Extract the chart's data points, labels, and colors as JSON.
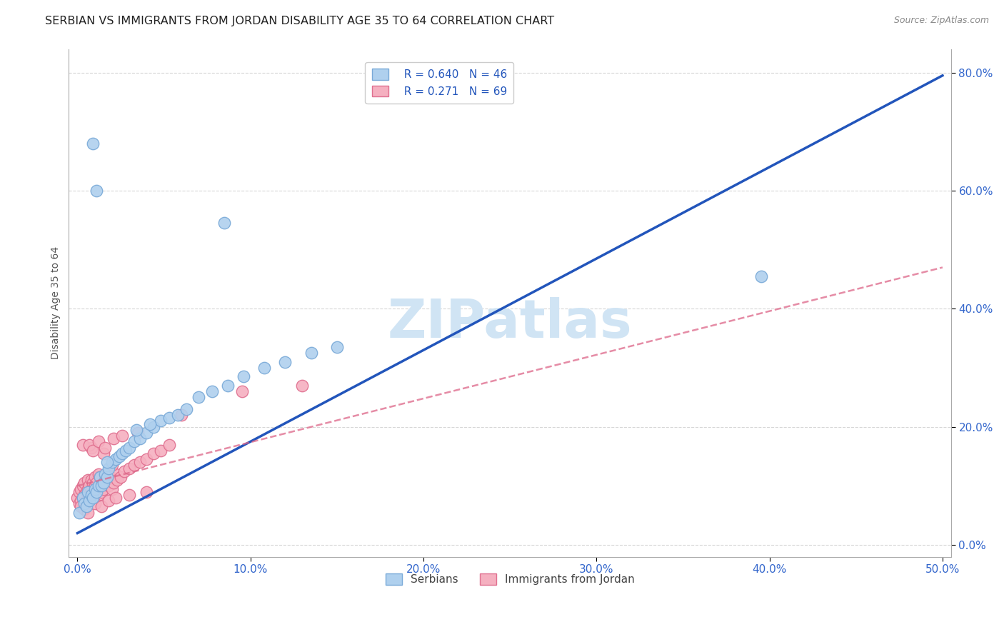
{
  "title": "SERBIAN VS IMMIGRANTS FROM JORDAN DISABILITY AGE 35 TO 64 CORRELATION CHART",
  "source": "Source: ZipAtlas.com",
  "ylabel": "Disability Age 35 to 64",
  "xlim": [
    -0.005,
    0.505
  ],
  "ylim": [
    -0.02,
    0.84
  ],
  "xticks": [
    0.0,
    0.1,
    0.2,
    0.3,
    0.4,
    0.5
  ],
  "xtick_labels": [
    "0.0%",
    "10.0%",
    "20.0%",
    "30.0%",
    "40.0%",
    "50.0%"
  ],
  "yticks": [
    0.0,
    0.2,
    0.4,
    0.6,
    0.8
  ],
  "ytick_labels": [
    "0.0%",
    "20.0%",
    "40.0%",
    "60.0%",
    "80.0%"
  ],
  "legend_r1": "R = 0.640",
  "legend_n1": "N = 46",
  "legend_r2": "R = 0.271",
  "legend_n2": "N = 69",
  "series1_label": "Serbians",
  "series2_label": "Immigrants from Jordan",
  "series1_color": "#afd0ee",
  "series2_color": "#f5b0c0",
  "series1_edge": "#7aaad8",
  "series2_edge": "#e07090",
  "line1_color": "#2255bb",
  "line2_color": "#dd6688",
  "background_color": "#ffffff",
  "grid_color": "#cccccc",
  "watermark": "ZIPatlas",
  "watermark_color": "#d0e4f4",
  "title_fontsize": 11.5,
  "axis_label_fontsize": 10,
  "tick_fontsize": 11,
  "legend_fontsize": 11,
  "series1_x": [
    0.001,
    0.003,
    0.004,
    0.005,
    0.006,
    0.007,
    0.008,
    0.009,
    0.01,
    0.011,
    0.012,
    0.013,
    0.014,
    0.015,
    0.016,
    0.017,
    0.018,
    0.02,
    0.022,
    0.024,
    0.026,
    0.028,
    0.03,
    0.033,
    0.036,
    0.04,
    0.044,
    0.048,
    0.053,
    0.058,
    0.063,
    0.07,
    0.078,
    0.087,
    0.096,
    0.108,
    0.12,
    0.135,
    0.15,
    0.017,
    0.009,
    0.011,
    0.395,
    0.085,
    0.034,
    0.042
  ],
  "series1_y": [
    0.055,
    0.08,
    0.07,
    0.065,
    0.09,
    0.075,
    0.085,
    0.08,
    0.095,
    0.09,
    0.1,
    0.115,
    0.1,
    0.105,
    0.12,
    0.115,
    0.13,
    0.14,
    0.145,
    0.15,
    0.155,
    0.16,
    0.165,
    0.175,
    0.18,
    0.19,
    0.2,
    0.21,
    0.215,
    0.22,
    0.23,
    0.25,
    0.26,
    0.27,
    0.285,
    0.3,
    0.31,
    0.325,
    0.335,
    0.14,
    0.68,
    0.6,
    0.455,
    0.545,
    0.195,
    0.205
  ],
  "series2_x": [
    0.0,
    0.001,
    0.001,
    0.002,
    0.002,
    0.003,
    0.003,
    0.004,
    0.004,
    0.005,
    0.005,
    0.006,
    0.006,
    0.007,
    0.007,
    0.008,
    0.008,
    0.009,
    0.009,
    0.01,
    0.01,
    0.011,
    0.011,
    0.012,
    0.012,
    0.013,
    0.013,
    0.014,
    0.015,
    0.016,
    0.017,
    0.018,
    0.019,
    0.02,
    0.021,
    0.022,
    0.023,
    0.025,
    0.027,
    0.03,
    0.033,
    0.036,
    0.04,
    0.044,
    0.048,
    0.053,
    0.015,
    0.02,
    0.008,
    0.003,
    0.002,
    0.004,
    0.006,
    0.01,
    0.014,
    0.018,
    0.022,
    0.03,
    0.04,
    0.007,
    0.009,
    0.012,
    0.016,
    0.021,
    0.026,
    0.035,
    0.06,
    0.095,
    0.13
  ],
  "series2_y": [
    0.08,
    0.07,
    0.09,
    0.075,
    0.095,
    0.08,
    0.1,
    0.085,
    0.105,
    0.09,
    0.075,
    0.095,
    0.11,
    0.1,
    0.085,
    0.095,
    0.11,
    0.105,
    0.08,
    0.1,
    0.115,
    0.09,
    0.105,
    0.12,
    0.085,
    0.1,
    0.115,
    0.09,
    0.095,
    0.11,
    0.12,
    0.1,
    0.115,
    0.095,
    0.105,
    0.12,
    0.11,
    0.115,
    0.125,
    0.13,
    0.135,
    0.14,
    0.145,
    0.155,
    0.16,
    0.17,
    0.155,
    0.135,
    0.165,
    0.17,
    0.065,
    0.06,
    0.055,
    0.07,
    0.065,
    0.075,
    0.08,
    0.085,
    0.09,
    0.17,
    0.16,
    0.175,
    0.165,
    0.18,
    0.185,
    0.19,
    0.22,
    0.26,
    0.27
  ],
  "line1_x0": 0.0,
  "line1_x1": 0.5,
  "line1_y0": 0.02,
  "line1_y1": 0.795,
  "line2_x0": 0.0,
  "line2_x1": 0.5,
  "line2_y0": 0.1,
  "line2_y1": 0.47
}
